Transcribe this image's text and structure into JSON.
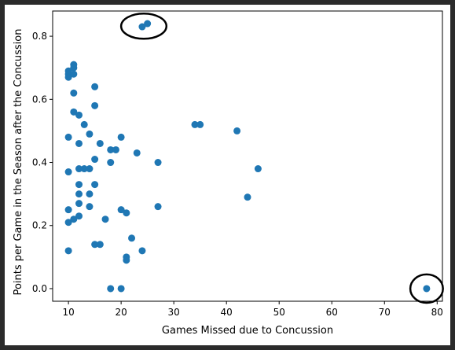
{
  "chart_data": {
    "type": "scatter",
    "title": "",
    "xlabel": "Games Missed due to Concussion",
    "ylabel": "Points per Game in the Season after the Concussion",
    "xlim": [
      7,
      81
    ],
    "ylim": [
      -0.04,
      0.88
    ],
    "xticks": [
      10,
      20,
      30,
      40,
      50,
      60,
      70,
      80
    ],
    "yticks": [
      0.0,
      0.2,
      0.4,
      0.6,
      0.8
    ],
    "grid": false,
    "marker_color": "#1f77b4",
    "annotation_color": "#000000",
    "series": [
      {
        "points": [
          [
            10,
            0.69
          ],
          [
            10,
            0.68
          ],
          [
            10,
            0.67
          ],
          [
            10,
            0.48
          ],
          [
            10,
            0.37
          ],
          [
            10,
            0.25
          ],
          [
            10,
            0.21
          ],
          [
            10,
            0.12
          ],
          [
            11,
            0.71
          ],
          [
            11,
            0.7
          ],
          [
            11,
            0.68
          ],
          [
            11,
            0.62
          ],
          [
            11,
            0.56
          ],
          [
            11,
            0.22
          ],
          [
            12,
            0.55
          ],
          [
            12,
            0.46
          ],
          [
            12,
            0.38
          ],
          [
            12,
            0.33
          ],
          [
            12,
            0.3
          ],
          [
            12,
            0.27
          ],
          [
            12,
            0.23
          ],
          [
            13,
            0.52
          ],
          [
            13,
            0.38
          ],
          [
            14,
            0.49
          ],
          [
            14,
            0.38
          ],
          [
            14,
            0.3
          ],
          [
            14,
            0.26
          ],
          [
            15,
            0.64
          ],
          [
            15,
            0.58
          ],
          [
            15,
            0.41
          ],
          [
            15,
            0.33
          ],
          [
            15,
            0.14
          ],
          [
            16,
            0.46
          ],
          [
            16,
            0.14
          ],
          [
            17,
            0.22
          ],
          [
            18,
            0.44
          ],
          [
            18,
            0.4
          ],
          [
            18,
            0.0
          ],
          [
            19,
            0.44
          ],
          [
            20,
            0.48
          ],
          [
            20,
            0.25
          ],
          [
            20,
            0.0
          ],
          [
            21,
            0.24
          ],
          [
            21,
            0.1
          ],
          [
            21,
            0.09
          ],
          [
            22,
            0.16
          ],
          [
            23,
            0.43
          ],
          [
            24,
            0.83
          ],
          [
            24,
            0.12
          ],
          [
            25,
            0.84
          ],
          [
            27,
            0.4
          ],
          [
            27,
            0.26
          ],
          [
            34,
            0.52
          ],
          [
            35,
            0.52
          ],
          [
            42,
            0.5
          ],
          [
            44,
            0.29
          ],
          [
            46,
            0.38
          ],
          [
            78,
            0.0
          ]
        ]
      }
    ],
    "annotations": [
      {
        "kind": "ellipse",
        "cx": 24.3,
        "cy": 0.832,
        "rx": 4.3,
        "ry": 0.04
      },
      {
        "kind": "ellipse",
        "cx": 78.0,
        "cy": 0.0,
        "rx": 3.1,
        "ry": 0.045
      }
    ]
  }
}
